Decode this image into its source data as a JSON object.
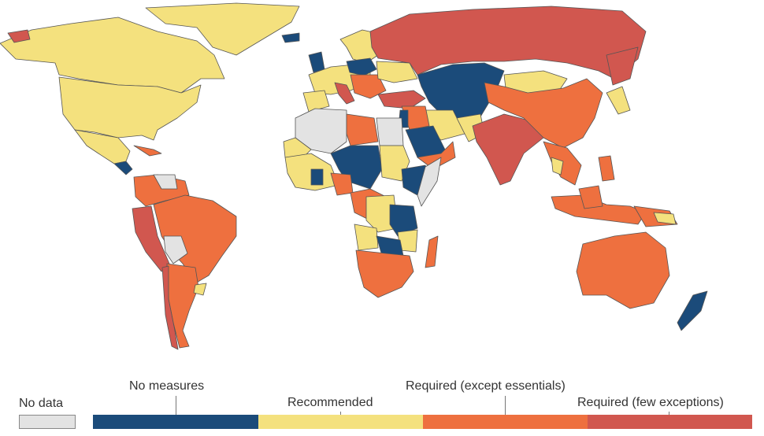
{
  "legend": {
    "no_data": {
      "label": "No data",
      "color": "#e3e3e3"
    },
    "categories": [
      {
        "key": "none",
        "label": "No measures",
        "color": "#1b4b7a"
      },
      {
        "key": "recommended",
        "label": "Recommended",
        "color": "#f4e17e"
      },
      {
        "key": "required_except",
        "label": "Required (except essentials)",
        "color": "#ee703f"
      },
      {
        "key": "required_few",
        "label": "Required (few exceptions)",
        "color": "#d1574f"
      }
    ]
  },
  "colors": {
    "ocean": "#ffffff",
    "border": "#555555",
    "tick": "#777777"
  }
}
